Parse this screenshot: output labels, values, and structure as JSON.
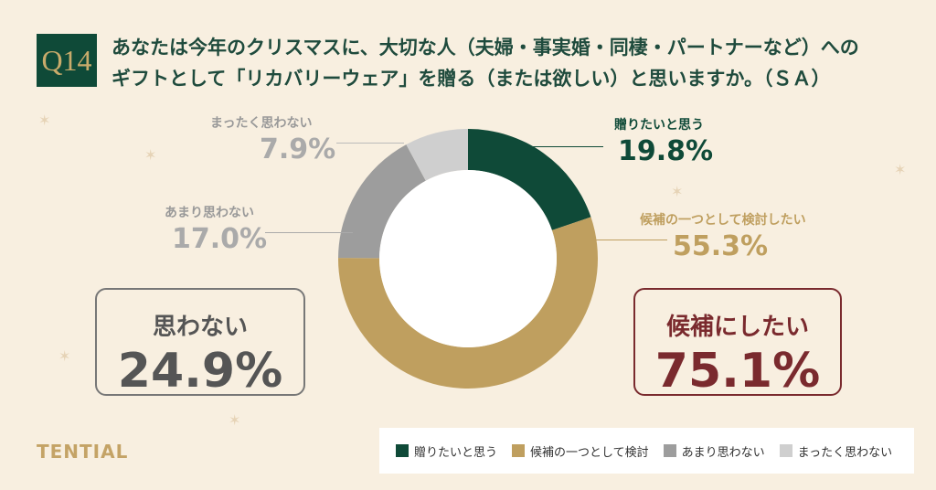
{
  "question": {
    "badge": "Q14",
    "line1": "あなたは今年のクリスマスに、大切な人（夫婦・事実婚・同棲・パートナーなど）への",
    "line2": "ギフトとして「リカバリーウェア」を贈る（または欲しい）と思いますか。（ＳＡ）"
  },
  "chart_data": {
    "type": "pie",
    "donut": true,
    "categories": [
      "贈りたいと思う",
      "候補の一つとして検討したい",
      "あまり思わない",
      "まったく思わない"
    ],
    "values": [
      19.8,
      55.3,
      17.0,
      7.9
    ],
    "value_labels": [
      "19.8%",
      "55.3%",
      "17.0%",
      "7.9%"
    ],
    "colors": [
      "#0f4a38",
      "#bf9f5f",
      "#9d9d9d",
      "#cfcfcf"
    ],
    "legend": [
      "贈りたいと思う",
      "候補の一つとして検討",
      "あまり思わない",
      "まったく思わない"
    ],
    "legend_position": "bottom-right"
  },
  "summary": {
    "no": {
      "label": "思わない",
      "value": "24.9%"
    },
    "yes": {
      "label": "候補にしたい",
      "value": "75.1%"
    }
  },
  "brand": "TENTIAL"
}
